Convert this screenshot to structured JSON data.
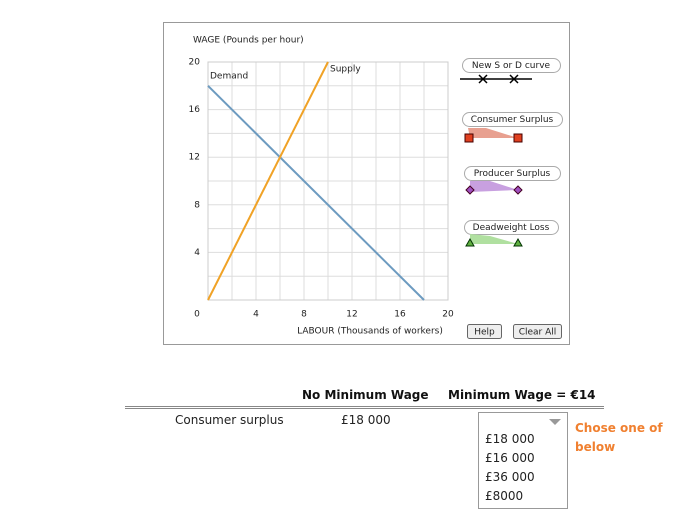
{
  "chart_data": {
    "type": "line",
    "ylabel": "WAGE (Pounds per hour)",
    "xlabel": "LABOUR (Thousands of workers)",
    "xlim": [
      0,
      20
    ],
    "ylim": [
      0,
      20
    ],
    "xticks": [
      0,
      4,
      8,
      12,
      16,
      20
    ],
    "yticks": [
      4,
      8,
      12,
      16,
      20
    ],
    "grid": true,
    "series": [
      {
        "name": "Demand",
        "color": "#6d9bc0",
        "x": [
          0,
          18
        ],
        "values": [
          18,
          0
        ]
      },
      {
        "name": "Supply",
        "color": "#f0a226",
        "x": [
          0,
          10
        ],
        "values": [
          0,
          20
        ]
      }
    ]
  },
  "tools": [
    "New S or D curve",
    "Consumer Surplus",
    "Producer Surplus",
    "Deadweight Loss"
  ],
  "buttons": [
    "Help",
    "Clear All"
  ],
  "table": {
    "headers": [
      "No Minimum Wage",
      "Minimum Wage = €14"
    ],
    "row": [
      "Consumer surplus",
      "£18 000"
    ],
    "dropdown_options": [
      "£18 000",
      "£16 000",
      "£36 000",
      "£8000"
    ],
    "note": "Chose one of below"
  }
}
